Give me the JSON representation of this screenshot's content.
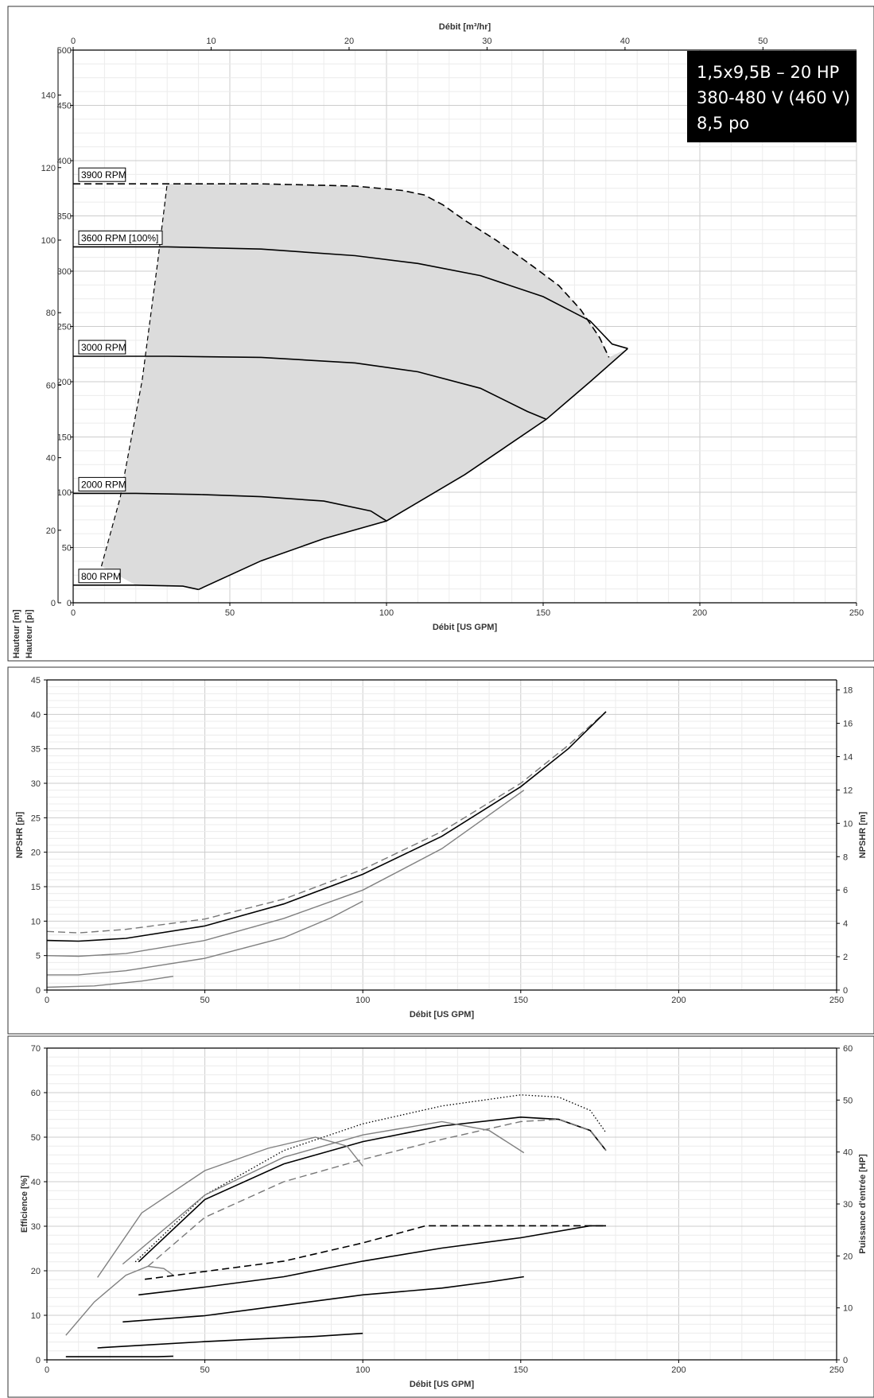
{
  "chart_data": [
    {
      "type": "line",
      "title": "",
      "xlabel": "Débit [US GPM]",
      "x2label": "Débit [m³/hr]",
      "ylabel": "Hauteur [pi]",
      "ylabel_right": "Hauteur [m]",
      "xlim": [
        0,
        250
      ],
      "x2lim": [
        0,
        56.78
      ],
      "ylim": [
        0,
        500
      ],
      "y2lim": [
        0,
        152.4
      ],
      "xticks": [
        "0",
        "50",
        "100",
        "150",
        "200",
        "250"
      ],
      "x2ticks": [
        "0",
        "10",
        "20",
        "30",
        "40",
        "50"
      ],
      "yticks": [
        "0",
        "50",
        "100",
        "150",
        "200",
        "250",
        "300",
        "350",
        "400",
        "450",
        "500"
      ],
      "y2ticks": [
        "0",
        "20",
        "40",
        "60",
        "80",
        "100",
        "120",
        "140"
      ],
      "grid": true,
      "info_box": [
        "1,5x9,5B – 20 HP",
        "380-480 V (460 V)",
        "8,5 po"
      ],
      "info_box_position": "top-right",
      "series": [
        {
          "name": "3900 RPM",
          "style": "dashed",
          "x": [
            0,
            30,
            60,
            90,
            105,
            112,
            118,
            125,
            135,
            145,
            155,
            162,
            168,
            171
          ],
          "y": [
            379,
            379,
            379,
            377,
            373,
            369,
            360,
            346,
            328,
            308,
            287,
            265,
            240,
            222
          ]
        },
        {
          "name": "3600 RPM [100%]",
          "style": "solid",
          "x": [
            0,
            30,
            60,
            90,
            110,
            130,
            150,
            165,
            172,
            177
          ],
          "y": [
            322,
            322,
            320,
            314,
            307,
            296,
            277,
            255,
            234,
            230
          ]
        },
        {
          "name": "3000 RPM",
          "style": "solid",
          "x": [
            0,
            30,
            60,
            90,
            110,
            130,
            145,
            151
          ],
          "y": [
            223,
            223,
            222,
            217,
            209,
            194,
            173,
            166
          ]
        },
        {
          "name": "2000 RPM",
          "style": "solid",
          "x": [
            0,
            20,
            40,
            60,
            80,
            95,
            100
          ],
          "y": [
            99,
            99,
            98,
            96,
            92,
            83,
            74
          ]
        },
        {
          "name": "800 RPM",
          "style": "solid",
          "x": [
            0,
            20,
            35,
            40
          ],
          "y": [
            16,
            16,
            15,
            12
          ]
        },
        {
          "name": "",
          "style": "dashed-thin",
          "x": [
            9,
            15,
            22,
            27,
            30
          ],
          "y": [
            33,
            95,
            201,
            309,
            379
          ]
        },
        {
          "name": "",
          "style": "solid",
          "x": [
            40,
            60,
            80,
            100,
            125,
            151,
            165,
            177
          ],
          "y": [
            12,
            38,
            58,
            74,
            116,
            166,
            200,
            230
          ]
        }
      ]
    },
    {
      "type": "line",
      "title": "",
      "xlabel": "Débit [US GPM]",
      "ylabel": "NPSHR [pi]",
      "ylabel_right": "NPSHR [m]",
      "xlim": [
        0,
        250
      ],
      "ylim": [
        0,
        45
      ],
      "y2lim": [
        0,
        18.6
      ],
      "xticks": [
        "0",
        "50",
        "100",
        "150",
        "200",
        "250"
      ],
      "yticks": [
        "0",
        "5",
        "10",
        "15",
        "20",
        "25",
        "30",
        "35",
        "40",
        "45"
      ],
      "y2ticks": [
        "0",
        "2",
        "4",
        "6",
        "8",
        "10",
        "12",
        "14",
        "16",
        "18"
      ],
      "grid": true,
      "series": [
        {
          "name": "",
          "style": "dashed-gray",
          "x": [
            0,
            10,
            25,
            50,
            75,
            100,
            125,
            150,
            165,
            177
          ],
          "y": [
            8.5,
            8.3,
            8.8,
            10.3,
            13.2,
            17.5,
            23.0,
            30.0,
            35.5,
            40.4
          ]
        },
        {
          "name": "",
          "style": "solid",
          "x": [
            0,
            10,
            25,
            50,
            75,
            100,
            125,
            150,
            165,
            177
          ],
          "y": [
            7.2,
            7.1,
            7.5,
            9.3,
            12.5,
            16.8,
            22.3,
            29.5,
            35.0,
            40.4
          ]
        },
        {
          "name": "",
          "style": "solid-gray",
          "x": [
            0,
            10,
            25,
            50,
            75,
            100,
            125,
            151
          ],
          "y": [
            5.0,
            4.9,
            5.3,
            7.2,
            10.4,
            14.5,
            20.5,
            29.0
          ]
        },
        {
          "name": "",
          "style": "solid-gray",
          "x": [
            0,
            10,
            25,
            50,
            75,
            90,
            100
          ],
          "y": [
            2.2,
            2.2,
            2.8,
            4.6,
            7.6,
            10.5,
            12.9
          ]
        },
        {
          "name": "",
          "style": "solid-gray",
          "x": [
            0,
            15,
            30,
            40
          ],
          "y": [
            0.4,
            0.6,
            1.3,
            2.0
          ]
        }
      ]
    },
    {
      "type": "line",
      "title": "",
      "xlabel": "Débit [US GPM]",
      "ylabel": "Efficience [%]",
      "ylabel_right": "Puissance d'entrée [HP]",
      "xlim": [
        0,
        250
      ],
      "ylim": [
        0,
        70
      ],
      "y2lim": [
        0,
        60
      ],
      "xticks": [
        "0",
        "50",
        "100",
        "150",
        "200",
        "250"
      ],
      "yticks": [
        "0",
        "10",
        "20",
        "30",
        "40",
        "50",
        "60",
        "70"
      ],
      "y2ticks": [
        "0",
        "10",
        "20",
        "30",
        "40",
        "50",
        "60"
      ],
      "grid": true,
      "series": [
        {
          "name": "",
          "style": "dotted",
          "axis": "left",
          "x": [
            28,
            50,
            75,
            100,
            125,
            150,
            162,
            172,
            177
          ],
          "y": [
            22,
            37,
            47,
            53,
            57,
            59.5,
            59,
            56,
            51
          ]
        },
        {
          "name": "",
          "style": "solid",
          "axis": "left",
          "x": [
            29,
            50,
            75,
            100,
            125,
            150,
            162,
            172,
            177
          ],
          "y": [
            22,
            36,
            44,
            49,
            52.5,
            54.5,
            54,
            51.5,
            47
          ]
        },
        {
          "name": "",
          "style": "dashed-gray",
          "axis": "left",
          "x": [
            32,
            50,
            75,
            100,
            125,
            150,
            162,
            172,
            177
          ],
          "y": [
            21,
            32,
            40,
            45,
            49.5,
            53.5,
            54,
            51.5,
            47
          ]
        },
        {
          "name": "",
          "style": "solid-gray",
          "axis": "left",
          "x": [
            24,
            50,
            75,
            100,
            125,
            140,
            151
          ],
          "y": [
            21.5,
            37,
            45.5,
            50.5,
            53.5,
            51.5,
            46.5
          ]
        },
        {
          "name": "",
          "style": "solid-gray",
          "axis": "left",
          "x": [
            16,
            30,
            50,
            70,
            85,
            95,
            100
          ],
          "y": [
            18.5,
            33,
            42.5,
            47.5,
            50,
            48,
            43.5
          ]
        },
        {
          "name": "",
          "style": "solid-gray",
          "axis": "left",
          "x": [
            6,
            15,
            25,
            32,
            37,
            40
          ],
          "y": [
            5.5,
            13,
            19,
            21,
            20.5,
            19
          ]
        },
        {
          "name": "",
          "style": "dashed",
          "axis": "right",
          "x": [
            31,
            50,
            75,
            100,
            120,
            150,
            177
          ],
          "y": [
            15.5,
            17,
            19,
            22.5,
            25.8,
            25.8,
            25.8
          ]
        },
        {
          "name": "",
          "style": "solid",
          "axis": "right",
          "x": [
            29,
            50,
            75,
            100,
            125,
            150,
            172,
            177
          ],
          "y": [
            12.5,
            14,
            16,
            19,
            21.5,
            23.5,
            25.8,
            25.8
          ]
        },
        {
          "name": "",
          "style": "solid",
          "axis": "right",
          "x": [
            24,
            50,
            75,
            100,
            125,
            140,
            151
          ],
          "y": [
            7.3,
            8.5,
            10.5,
            12.5,
            13.8,
            15,
            16
          ]
        },
        {
          "name": "",
          "style": "solid",
          "axis": "right",
          "x": [
            16,
            30,
            50,
            70,
            85,
            100
          ],
          "y": [
            2.3,
            2.8,
            3.5,
            4.1,
            4.5,
            5.1
          ]
        },
        {
          "name": "",
          "style": "solid",
          "axis": "right",
          "x": [
            6,
            20,
            35,
            40
          ],
          "y": [
            0.6,
            0.6,
            0.6,
            0.7
          ]
        }
      ]
    }
  ]
}
